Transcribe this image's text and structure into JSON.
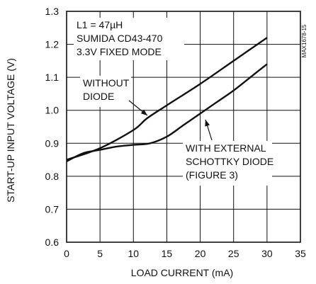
{
  "chart_data": {
    "type": "line",
    "xlabel": "LOAD CURRENT (mA)",
    "ylabel": "START-UP INPUT VOLTAGE (V)",
    "xlim": [
      0,
      35
    ],
    "ylim": [
      0.6,
      1.3
    ],
    "xticks": [
      "0",
      "5",
      "10",
      "15",
      "20",
      "25",
      "30",
      "35"
    ],
    "yticks": [
      "0.6",
      "0.7",
      "0.8",
      "0.9",
      "1.0",
      "1.1",
      "1.2",
      "1.3"
    ],
    "grid": true,
    "conditions": [
      "L1 = 47µH",
      "SUMIDA CD43-470",
      "3.3V FIXED MODE"
    ],
    "figure_code": "MAX1678-15",
    "series": [
      {
        "name": "WITHOUT DIODE",
        "x": [
          0,
          5,
          10,
          12,
          15,
          20,
          25,
          30
        ],
        "y": [
          0.85,
          0.885,
          0.94,
          0.975,
          1.015,
          1.08,
          1.15,
          1.22
        ]
      },
      {
        "name": "WITH EXTERNAL SCHOTTKY DIODE (FIGURE 3)",
        "x": [
          0,
          2.5,
          5,
          7.5,
          10,
          12.5,
          15,
          17.5,
          20,
          22.5,
          25,
          27.5,
          30
        ],
        "y": [
          0.845,
          0.87,
          0.88,
          0.89,
          0.895,
          0.9,
          0.92,
          0.955,
          0.99,
          1.025,
          1.06,
          1.1,
          1.14
        ]
      }
    ],
    "annotations": [
      {
        "lines": [
          "WITHOUT",
          "DIODE"
        ],
        "target_series": 0
      },
      {
        "lines": [
          "WITH EXTERNAL",
          "SCHOTTKY DIODE",
          "(FIGURE 3)"
        ],
        "target_series": 1
      }
    ]
  }
}
